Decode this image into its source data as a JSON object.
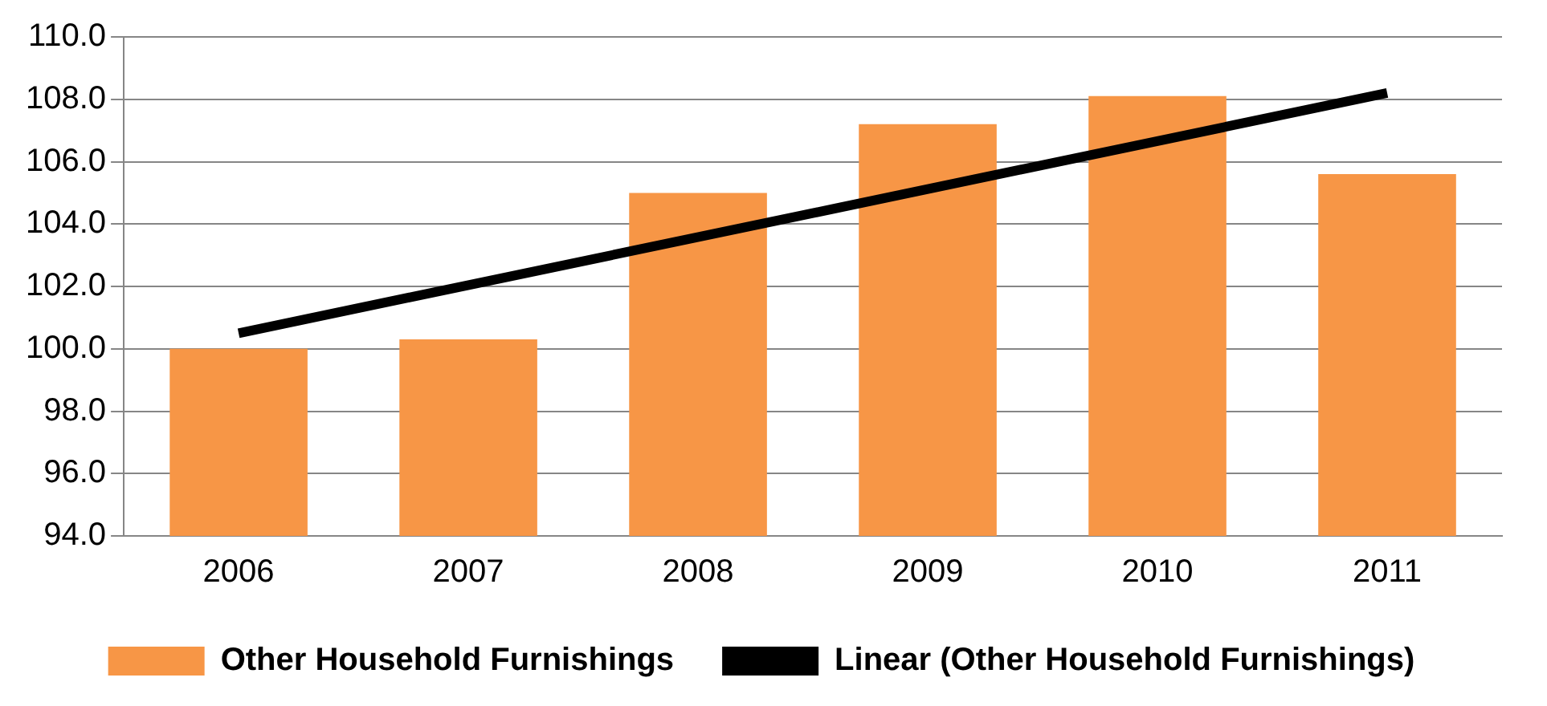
{
  "chart_data": {
    "type": "bar",
    "categories": [
      "2006",
      "2007",
      "2008",
      "2009",
      "2010",
      "2011"
    ],
    "series": [
      {
        "name": "Other Household Furnishings",
        "color": "#f79646",
        "values": [
          100.0,
          100.3,
          105.0,
          107.2,
          108.1,
          105.6
        ]
      },
      {
        "name": "Linear (Other Household Furnishings)",
        "type": "line",
        "color": "#000000",
        "values": [
          100.5,
          null,
          null,
          null,
          null,
          108.2
        ]
      }
    ],
    "ylim": [
      94,
      110
    ],
    "yticks": [
      {
        "value": 94,
        "label": "94.0"
      },
      {
        "value": 96,
        "label": "96.0"
      },
      {
        "value": 98,
        "label": "98.0"
      },
      {
        "value": 100,
        "label": "100.0"
      },
      {
        "value": 102,
        "label": "102.0"
      },
      {
        "value": 104,
        "label": "104.0"
      },
      {
        "value": 106,
        "label": "106.0"
      },
      {
        "value": 108,
        "label": "108.0"
      },
      {
        "value": 110,
        "label": "110.0"
      }
    ],
    "grid": "y",
    "legend": "bottom",
    "marker": "none",
    "line_style": "solid"
  }
}
